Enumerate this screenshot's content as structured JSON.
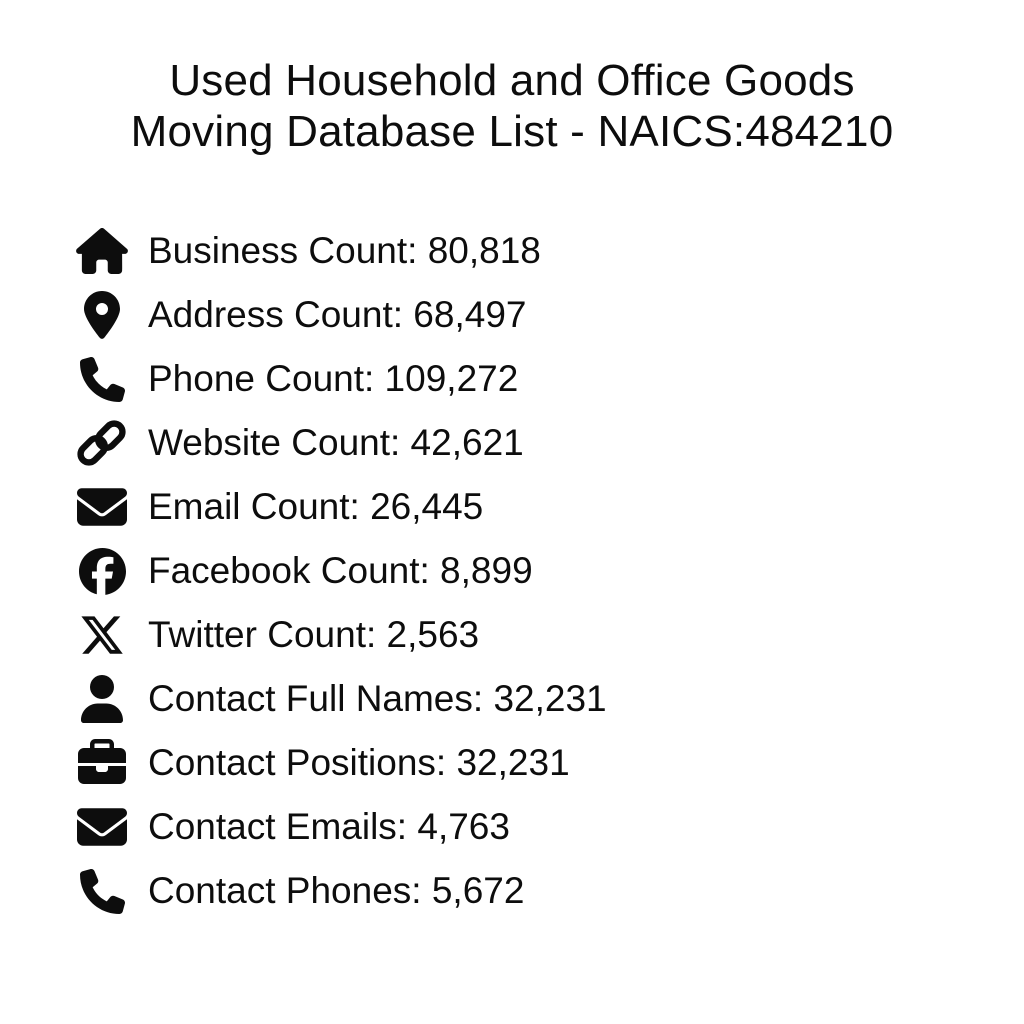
{
  "page": {
    "background_color": "#ffffff",
    "text_color": "#0d0d0d"
  },
  "header": {
    "title_line1": "Used Household and Office Goods",
    "title_line2": "Moving Database List - NAICS:484210",
    "naics_code": "484210"
  },
  "stats": [
    {
      "icon": "house-icon",
      "label": "Business Count",
      "value": "80,818",
      "text": "Business Count: 80,818"
    },
    {
      "icon": "location-pin-icon",
      "label": "Address Count",
      "value": "68,497",
      "text": "Address Count: 68,497"
    },
    {
      "icon": "phone-icon",
      "label": "Phone Count",
      "value": "109,272",
      "text": "Phone Count: 109,272"
    },
    {
      "icon": "link-icon",
      "label": "Website Count",
      "value": "42,621",
      "text": "Website Count: 42,621"
    },
    {
      "icon": "envelope-icon",
      "label": "Email Count",
      "value": "26,445",
      "text": "Email Count: 26,445"
    },
    {
      "icon": "facebook-icon",
      "label": "Facebook Count",
      "value": "8,899",
      "text": "Facebook Count: 8,899"
    },
    {
      "icon": "x-twitter-icon",
      "label": "Twitter Count",
      "value": "2,563",
      "text": "Twitter Count: 2,563"
    },
    {
      "icon": "user-icon",
      "label": "Contact Full Names",
      "value": "32,231",
      "text": "Contact Full Names: 32,231"
    },
    {
      "icon": "briefcase-icon",
      "label": "Contact Positions",
      "value": "32,231",
      "text": "Contact Positions: 32,231"
    },
    {
      "icon": "envelope-icon",
      "label": "Contact Emails",
      "value": "4,763",
      "text": "Contact Emails: 4,763"
    },
    {
      "icon": "phone-icon",
      "label": "Contact Phones",
      "value": "5,672",
      "text": "Contact Phones: 5,672"
    }
  ]
}
